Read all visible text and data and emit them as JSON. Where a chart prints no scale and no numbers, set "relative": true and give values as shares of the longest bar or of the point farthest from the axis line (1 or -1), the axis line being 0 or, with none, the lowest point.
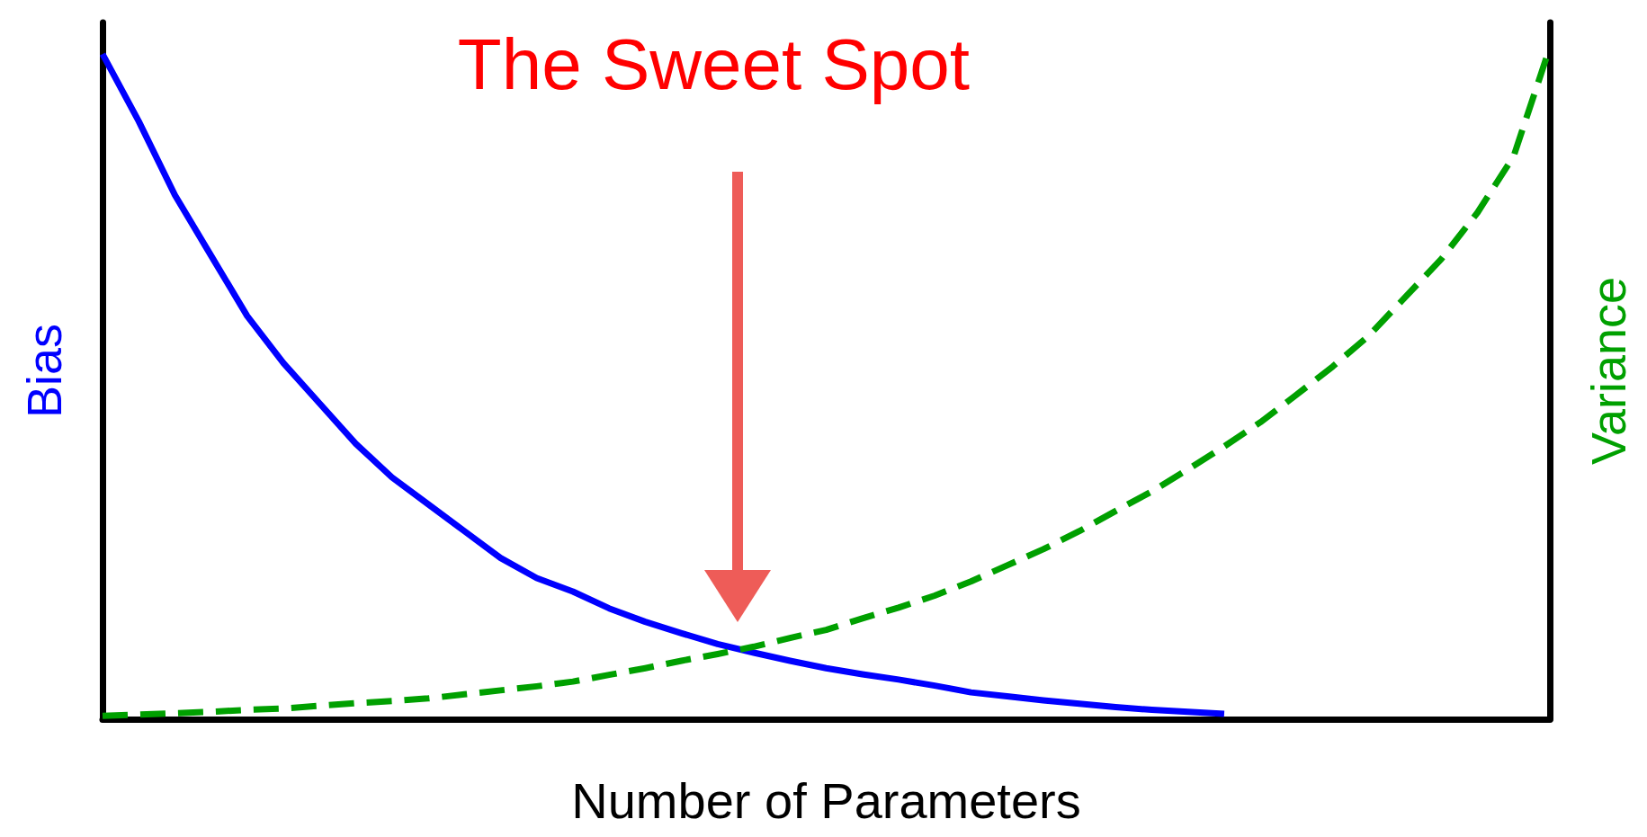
{
  "chart_data": {
    "type": "line",
    "relative": true,
    "title": "The Sweet Spot",
    "xlabel": "Number of Parameters",
    "ylabel": "Bias",
    "y2label": "Variance",
    "categories": [
      null,
      null,
      null,
      null,
      null,
      null,
      null,
      null,
      null,
      null,
      null,
      null,
      null,
      null,
      null,
      null,
      null,
      null,
      null,
      null,
      null,
      null,
      null,
      null,
      null,
      null,
      null,
      null,
      null,
      null,
      null,
      null,
      null,
      null,
      null,
      null,
      null,
      null,
      null,
      null,
      null
    ],
    "series": [
      {
        "color": "#0000ff",
        "line_style": "solid",
        "values": [
          0.99,
          0.89,
          0.78,
          0.69,
          0.6,
          0.53,
          0.47,
          0.41,
          0.36,
          0.32,
          0.28,
          0.24,
          0.21,
          0.19,
          0.165,
          0.145,
          0.128,
          0.112,
          0.099,
          0.087,
          0.076,
          0.067,
          0.059,
          0.05,
          0.04,
          0.034,
          0.028,
          0.023,
          0.018,
          0.014,
          0.011,
          0.008,
          null,
          null,
          null,
          null,
          null,
          null,
          null,
          null,
          null
        ]
      },
      {
        "color": "#00a000",
        "line_style": "dashed",
        "values": [
          0.005,
          0.007,
          0.009,
          0.011,
          0.014,
          0.016,
          0.02,
          0.024,
          0.027,
          0.031,
          0.037,
          0.043,
          0.049,
          0.056,
          0.066,
          0.076,
          0.087,
          0.097,
          0.108,
          0.121,
          0.133,
          0.15,
          0.166,
          0.184,
          0.205,
          0.229,
          0.253,
          0.28,
          0.31,
          0.339,
          0.372,
          0.406,
          0.442,
          0.483,
          0.525,
          0.571,
          0.628,
          0.685,
          0.754,
          0.838,
          1
        ]
      }
    ],
    "grid": false,
    "marker": "none"
  }
}
